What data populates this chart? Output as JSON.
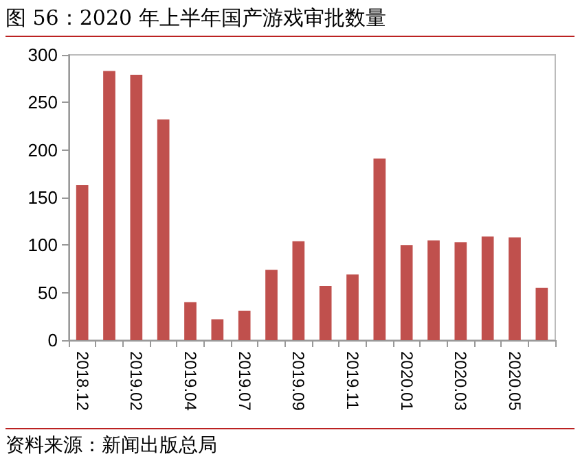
{
  "chart_data": {
    "type": "bar",
    "title": "图 56：2020 年上半年国产游戏审批数量",
    "categories": [
      "2018.12",
      null,
      "2019.02",
      null,
      "2019.04",
      null,
      "2019.07",
      null,
      "2019.09",
      null,
      "2019.11",
      null,
      "2020.01",
      null,
      "2020.03",
      null,
      "2020.05",
      null
    ],
    "values": [
      163,
      283,
      279,
      232,
      40,
      22,
      31,
      74,
      104,
      57,
      69,
      191,
      100,
      105,
      103,
      109,
      108,
      55
    ],
    "color": "#c0504d",
    "ylim": [
      0,
      300
    ],
    "yticks": [
      0,
      50,
      100,
      150,
      200,
      250,
      300
    ],
    "grid": false,
    "annotations": [
      "资料来源：新闻出版总局"
    ]
  }
}
